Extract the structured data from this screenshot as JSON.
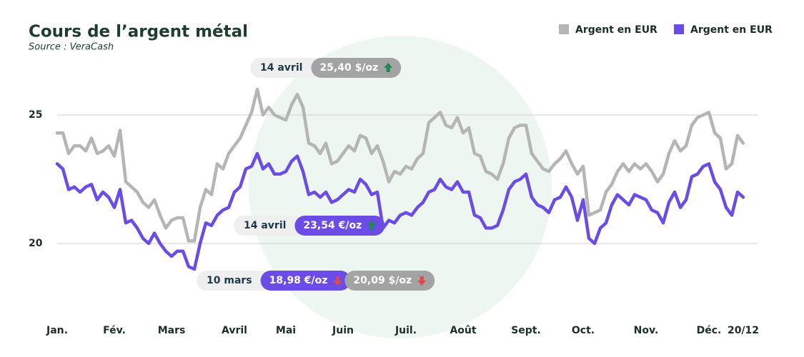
{
  "chart_data": {
    "type": "line",
    "title": "Cours de l’argent métal",
    "subtitle": "Source : VeraCash",
    "categories": [
      "Jan.",
      null,
      null,
      null,
      null,
      null,
      null,
      null,
      null,
      null,
      "Fév.",
      null,
      null,
      null,
      null,
      null,
      null,
      null,
      null,
      null,
      "Mars",
      null,
      null,
      null,
      null,
      null,
      null,
      null,
      null,
      null,
      null,
      "Avril",
      null,
      null,
      null,
      null,
      null,
      null,
      null,
      null,
      "Mai",
      null,
      null,
      null,
      null,
      null,
      null,
      null,
      null,
      null,
      "Juin",
      null,
      null,
      null,
      null,
      null,
      null,
      null,
      null,
      null,
      null,
      "Juil.",
      null,
      null,
      null,
      null,
      null,
      null,
      null,
      null,
      null,
      "Août",
      null,
      null,
      null,
      null,
      null,
      null,
      null,
      null,
      null,
      null,
      "Sept.",
      null,
      null,
      null,
      null,
      null,
      null,
      null,
      null,
      null,
      "Oct.",
      null,
      null,
      null,
      null,
      null,
      null,
      null,
      null,
      null,
      null,
      "Nov.",
      null,
      null,
      null,
      null,
      null,
      null,
      null,
      null,
      null,
      null,
      "Déc.",
      null,
      null,
      null,
      null,
      null,
      "20/12"
    ],
    "series": [
      {
        "name": "Argent en EUR",
        "color": "#b5b5b5",
        "values": [
          24.3,
          24.3,
          23.5,
          23.8,
          23.8,
          23.6,
          24.1,
          23.5,
          23.6,
          23.8,
          23.4,
          24.4,
          22.4,
          22.2,
          22.0,
          21.6,
          21.4,
          21.7,
          21.1,
          20.6,
          20.9,
          21.0,
          21.0,
          20.1,
          20.1,
          21.4,
          22.1,
          21.9,
          23.1,
          22.9,
          23.5,
          23.8,
          24.1,
          24.6,
          25.1,
          26.0,
          25.0,
          25.3,
          25.0,
          24.9,
          24.8,
          25.4,
          25.8,
          25.3,
          23.9,
          23.8,
          23.5,
          23.9,
          23.1,
          23.2,
          23.5,
          23.8,
          23.6,
          24.2,
          24.1,
          23.5,
          23.8,
          23.2,
          22.4,
          22.8,
          22.7,
          23.0,
          22.9,
          23.3,
          23.5,
          24.7,
          24.9,
          25.1,
          24.6,
          24.5,
          24.9,
          24.3,
          24.5,
          23.5,
          23.4,
          22.8,
          22.7,
          22.5,
          23.1,
          24.1,
          24.5,
          24.6,
          24.6,
          23.5,
          23.2,
          22.9,
          22.8,
          23.1,
          23.3,
          23.6,
          23.1,
          22.7,
          23.0,
          21.1,
          21.2,
          21.3,
          22.0,
          22.3,
          22.8,
          23.1,
          22.8,
          23.1,
          22.9,
          23.1,
          22.8,
          22.4,
          22.7,
          23.5,
          24.0,
          23.6,
          23.8,
          24.6,
          24.9,
          25.0,
          25.1,
          24.3,
          24.1,
          22.9,
          23.1,
          24.2,
          23.9
        ]
      },
      {
        "name": "Argent en EUR",
        "color": "#6b4de6",
        "values": [
          23.1,
          22.9,
          22.1,
          22.2,
          22.0,
          22.2,
          22.3,
          21.7,
          22.0,
          21.8,
          21.4,
          22.1,
          20.8,
          20.9,
          20.6,
          20.2,
          20.0,
          20.4,
          20.0,
          19.7,
          19.5,
          19.7,
          19.7,
          19.1,
          19.0,
          20.0,
          20.8,
          20.7,
          21.1,
          21.3,
          21.4,
          22.0,
          22.2,
          22.9,
          23.0,
          23.5,
          22.9,
          23.1,
          22.7,
          22.7,
          22.8,
          23.2,
          23.4,
          22.8,
          21.9,
          22.0,
          21.8,
          22.0,
          21.6,
          21.7,
          21.9,
          22.1,
          22.0,
          22.5,
          22.3,
          21.9,
          22.0,
          20.6,
          20.9,
          20.8,
          21.1,
          21.2,
          21.1,
          21.4,
          21.6,
          22.0,
          22.1,
          22.5,
          22.2,
          22.1,
          22.4,
          22.0,
          22.0,
          21.1,
          21.0,
          20.6,
          20.6,
          20.7,
          21.3,
          22.1,
          22.4,
          22.5,
          22.7,
          21.8,
          21.5,
          21.4,
          21.2,
          21.7,
          21.8,
          22.2,
          21.8,
          20.9,
          21.7,
          20.2,
          20.0,
          20.6,
          20.8,
          21.5,
          21.9,
          21.7,
          21.5,
          21.9,
          21.8,
          21.7,
          21.3,
          21.2,
          20.8,
          21.6,
          22.0,
          21.4,
          21.7,
          22.6,
          22.7,
          23.0,
          23.1,
          22.4,
          22.1,
          21.4,
          21.1,
          22.0,
          21.8
        ]
      }
    ],
    "ylim": [
      17.5,
      27.5
    ],
    "yticks": [
      20,
      25
    ],
    "grid": true,
    "legend": "top-right",
    "annotations": [
      {
        "date": "14 avril",
        "values": [
          {
            "label": "25,40 $/oz",
            "trend": "up",
            "color": "#a3a3a3"
          }
        ]
      },
      {
        "date": "14 avril",
        "values": [
          {
            "label": "23,54 €/oz",
            "trend": "up",
            "color": "#6b4de6"
          }
        ]
      },
      {
        "date": "10 mars",
        "values": [
          {
            "label": "18,98 €/oz",
            "trend": "down",
            "color": "#6b4de6"
          },
          {
            "label": "20,09 $/oz",
            "trend": "down",
            "color": "#a3a3a3"
          }
        ]
      }
    ]
  }
}
